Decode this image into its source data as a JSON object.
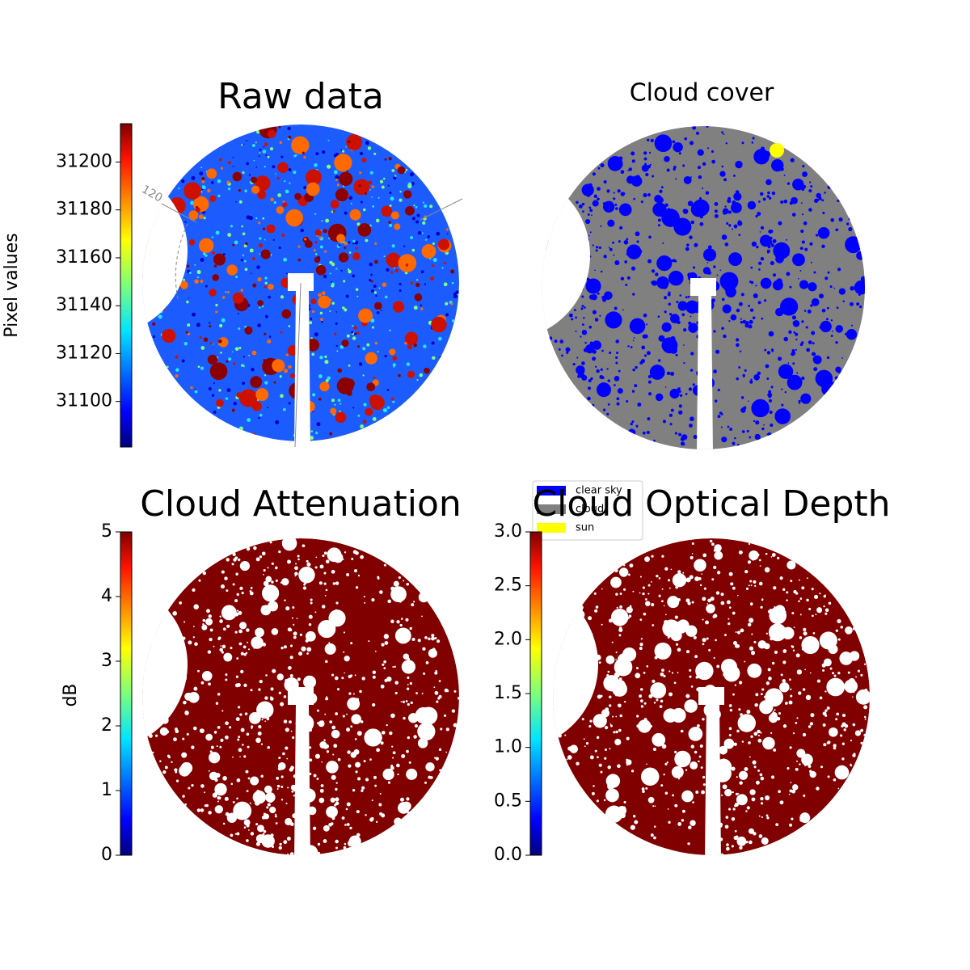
{
  "chart_data": [
    {
      "type": "heatmap",
      "title": "Raw data",
      "annotation": "120",
      "colorbar": {
        "label": "Pixel values",
        "colormap": "jet",
        "lim": [
          31081,
          31216
        ],
        "ticks": [
          31100,
          31120,
          31140,
          31160,
          31180,
          31200
        ]
      }
    },
    {
      "type": "categorical",
      "title": "Cloud cover",
      "series": [
        {
          "name": "clear sky",
          "color": "#0000ff"
        },
        {
          "name": "cloud",
          "color": "#808080"
        },
        {
          "name": "sun",
          "color": "#ffff00"
        }
      ]
    },
    {
      "type": "heatmap",
      "title": "Cloud Attenuation",
      "colorbar": {
        "label": "dB",
        "colormap": "jet",
        "lim": [
          0,
          5
        ],
        "ticks": [
          0,
          1,
          2,
          3,
          4,
          5
        ]
      }
    },
    {
      "type": "heatmap",
      "title": "Cloud Optical Depth",
      "colorbar": {
        "colormap": "jet",
        "lim": [
          0,
          3
        ],
        "ticks": [
          {
            "value": 0,
            "label": "0.0"
          },
          0.5,
          {
            "value": 1,
            "label": "1.0"
          },
          1.5,
          {
            "value": 2,
            "label": "2.0"
          },
          2.5,
          {
            "value": 3,
            "label": "3.0"
          }
        ]
      }
    }
  ]
}
